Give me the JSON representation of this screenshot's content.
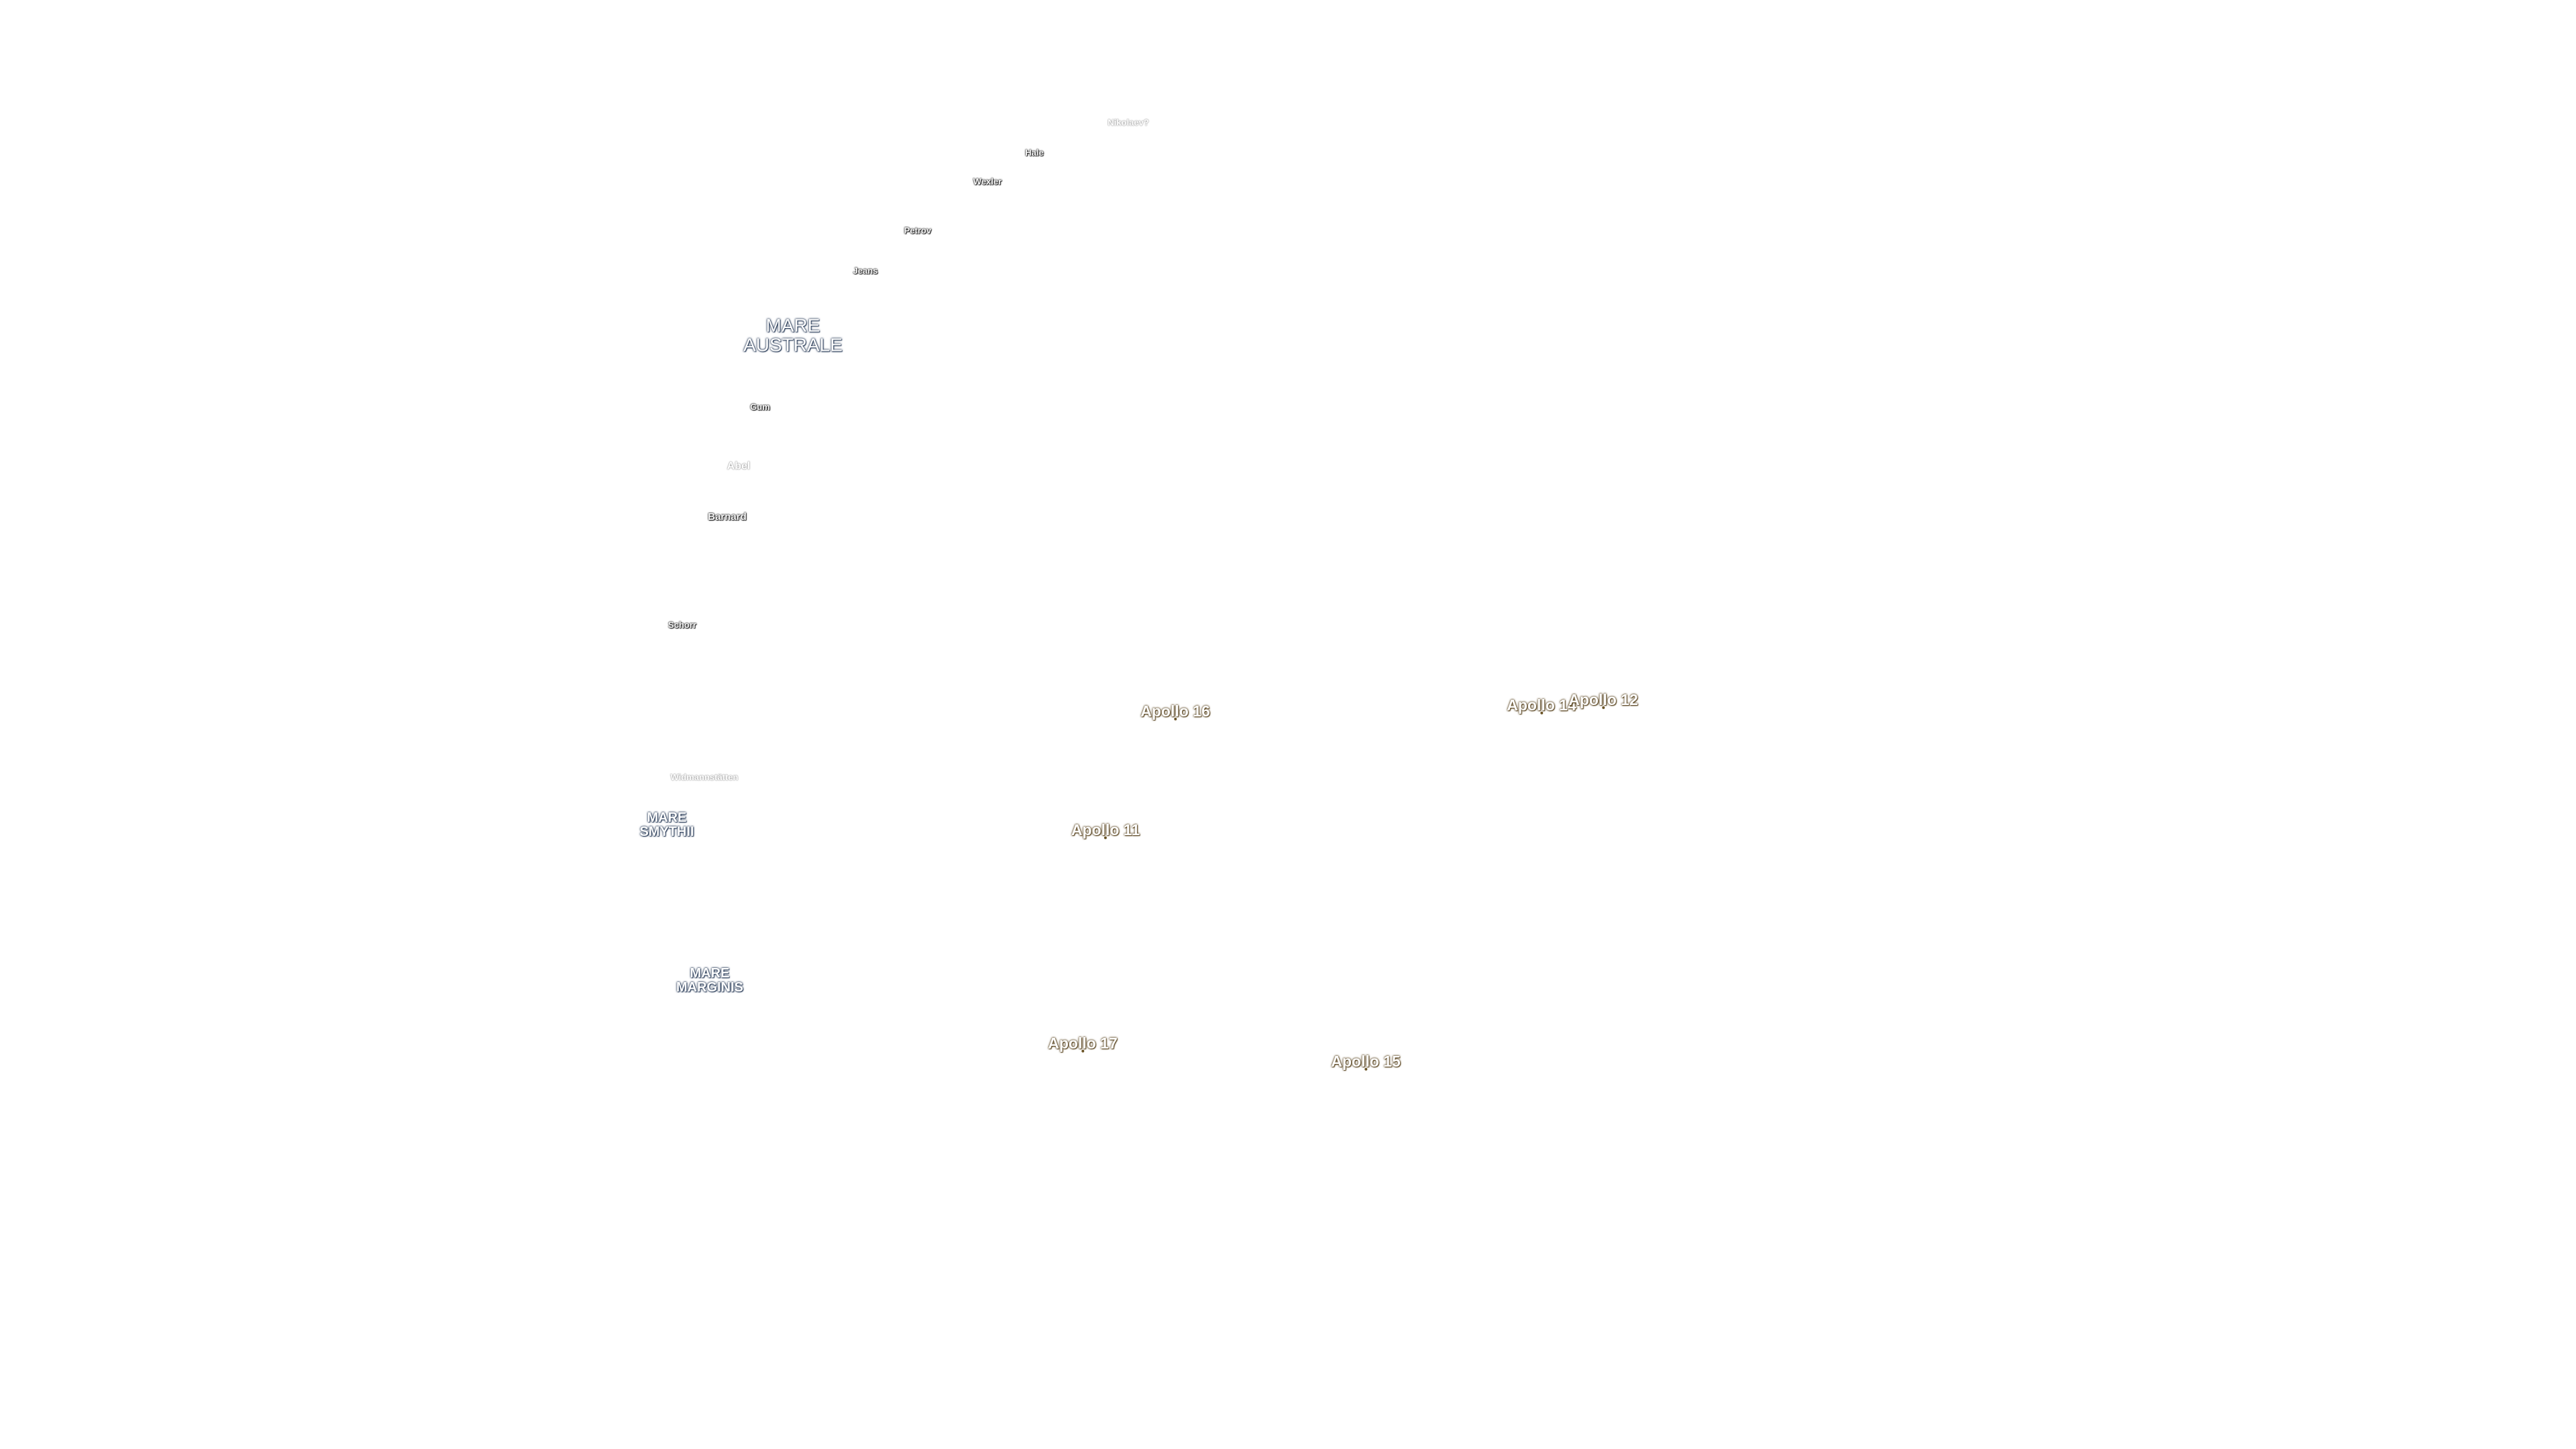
{
  "craters": [
    {
      "id": "nikolai",
      "name": "Nikolaev?",
      "faint": true
    },
    {
      "id": "hale",
      "name": "Hale",
      "faint": false
    },
    {
      "id": "wexler",
      "name": "Wexler",
      "faint": false
    },
    {
      "id": "petrov",
      "name": "Petrov",
      "faint": false
    },
    {
      "id": "jeans",
      "name": "Jeans",
      "faint": false
    },
    {
      "id": "gum",
      "name": "Gum",
      "faint": false
    },
    {
      "id": "abel",
      "name": "Abel",
      "faint": true
    },
    {
      "id": "barnard",
      "name": "Barnard",
      "faint": false
    },
    {
      "id": "schorr",
      "name": "Schorr",
      "faint": false
    },
    {
      "id": "widmannstatten",
      "name": "Widmannstätten",
      "faint": true
    }
  ],
  "maria": [
    {
      "id": "australe",
      "name": "MARE\nAUSTRALE"
    },
    {
      "id": "smythii",
      "name": "MARE\nSMYTHII"
    },
    {
      "id": "marginis",
      "name": "MARE\nMARGINIS"
    }
  ],
  "landing_sites": [
    {
      "id": "apollo-16",
      "name": "Apollo 16"
    },
    {
      "id": "apollo-14",
      "name": "Apollo 14"
    },
    {
      "id": "apollo-12",
      "name": "Apollo 12"
    },
    {
      "id": "apollo-11",
      "name": "Apollo 11"
    },
    {
      "id": "apollo-17",
      "name": "Apollo 17"
    },
    {
      "id": "apollo-15",
      "name": "Apollo 15"
    }
  ],
  "colors": {
    "background": "#ffffff",
    "crater_outline": "#222222",
    "mare_outline": "#2c3e5a",
    "apollo_outline": "#5a4520"
  }
}
